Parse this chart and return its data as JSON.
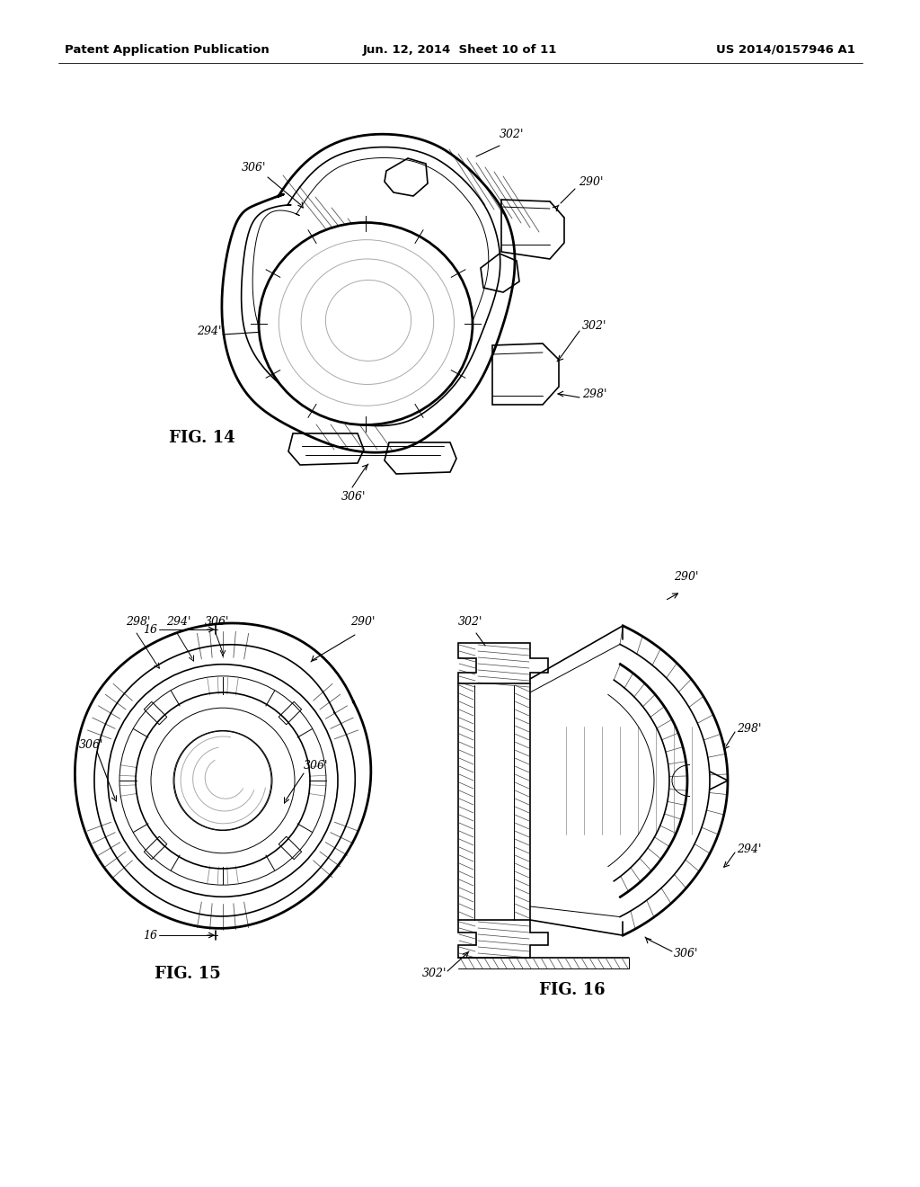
{
  "header_left": "Patent Application Publication",
  "header_center": "Jun. 12, 2014  Sheet 10 of 11",
  "header_right": "US 2014/0157946 A1",
  "fig14_label": "FIG. 14",
  "fig15_label": "FIG. 15",
  "fig16_label": "FIG. 16",
  "bg": "#ffffff",
  "lc": "#000000"
}
